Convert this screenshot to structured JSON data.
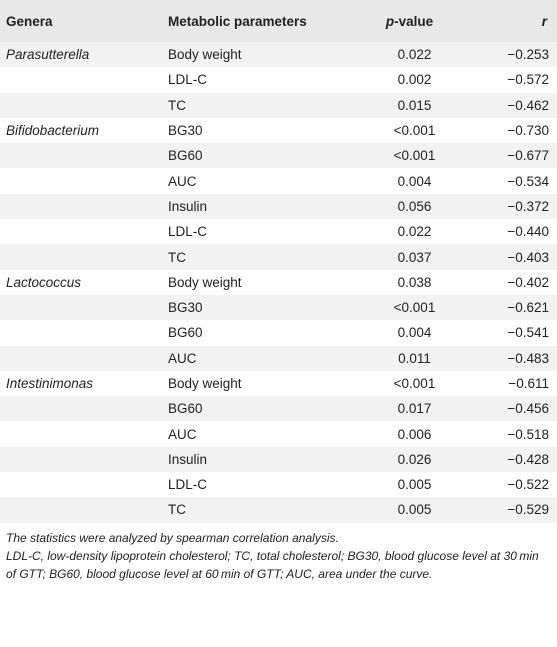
{
  "headers": {
    "genera": "Genera",
    "metabolic": "Metabolic parameters",
    "p_italic": "p",
    "p_suffix": "-value",
    "r": "r"
  },
  "rows": [
    {
      "genus": "Parasutterella",
      "param": "Body weight",
      "p": "0.022",
      "r": "−0.253"
    },
    {
      "genus": "",
      "param": "LDL-C",
      "p": "0.002",
      "r": "−0.572"
    },
    {
      "genus": "",
      "param": "TC",
      "p": "0.015",
      "r": "−0.462"
    },
    {
      "genus": "Bifidobacterium",
      "param": "BG30",
      "p": "<0.001",
      "r": "−0.730"
    },
    {
      "genus": "",
      "param": "BG60",
      "p": "<0.001",
      "r": "−0.677"
    },
    {
      "genus": "",
      "param": "AUC",
      "p": "0.004",
      "r": "−0.534"
    },
    {
      "genus": "",
      "param": "Insulin",
      "p": "0.056",
      "r": "−0.372"
    },
    {
      "genus": "",
      "param": "LDL-C",
      "p": "0.022",
      "r": "−0.440"
    },
    {
      "genus": "",
      "param": "TC",
      "p": "0.037",
      "r": "−0.403"
    },
    {
      "genus": "Lactococcus",
      "param": "Body weight",
      "p": "0.038",
      "r": "−0.402"
    },
    {
      "genus": "",
      "param": "BG30",
      "p": "<0.001",
      "r": "−0.621"
    },
    {
      "genus": "",
      "param": "BG60",
      "p": "0.004",
      "r": "−0.541"
    },
    {
      "genus": "",
      "param": "AUC",
      "p": "0.011",
      "r": "−0.483"
    },
    {
      "genus": "Intestinimonas",
      "param": "Body weight",
      "p": "<0.001",
      "r": "−0.611"
    },
    {
      "genus": "",
      "param": "BG60",
      "p": "0.017",
      "r": "−0.456"
    },
    {
      "genus": "",
      "param": "AUC",
      "p": "0.006",
      "r": "−0.518"
    },
    {
      "genus": "",
      "param": "Insulin",
      "p": "0.026",
      "r": "−0.428"
    },
    {
      "genus": "",
      "param": "LDL-C",
      "p": "0.005",
      "r": "−0.522"
    },
    {
      "genus": "",
      "param": "TC",
      "p": "0.005",
      "r": "−0.529"
    }
  ],
  "footnotes": {
    "method": "The statistics were analyzed by spearman correlation analysis.",
    "abbreviations": "LDL-C, low-density lipoprotein cholesterol; TC, total cholesterol; BG30, blood glucose level at 30 min of GTT; BG60, blood glucose level at 60 min of GTT; AUC, area under the curve."
  },
  "colors": {
    "header_bg": "#e8e8e8",
    "stripe_bg": "#f2f2f2",
    "text": "#222222"
  }
}
